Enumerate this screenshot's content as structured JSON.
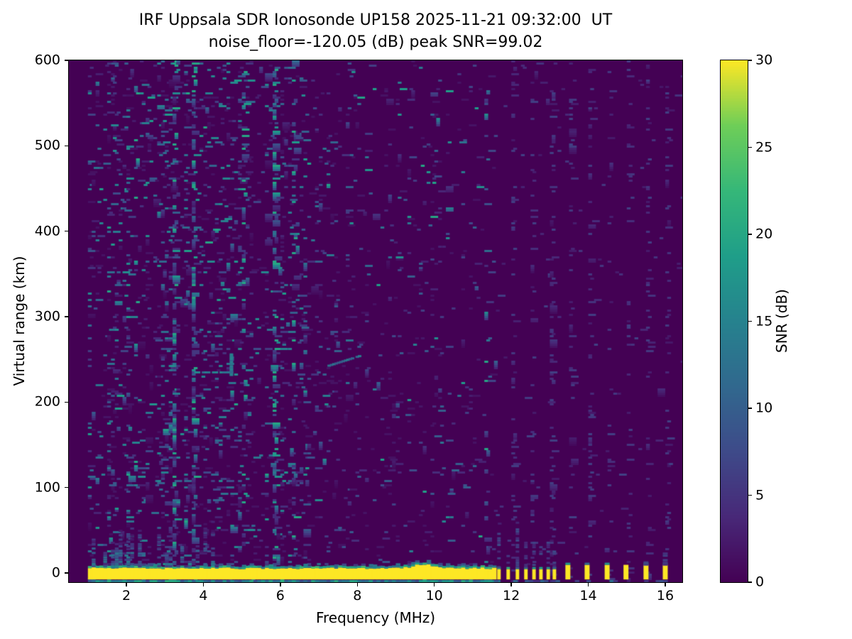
{
  "chart_data": {
    "type": "heatmap",
    "title": "IRF Uppsala SDR Ionosonde UP158 2025-11-21 09:32:00  UT",
    "subtitle": "noise_floor=-120.05 (dB) peak SNR=99.02",
    "xlabel": "Frequency (MHz)",
    "ylabel": "Virtual range (km)",
    "colorbar_label": "SNR (dB)",
    "xlim": [
      0.506,
      16.443
    ],
    "ylim": [
      -10.85,
      600
    ],
    "xticks": [
      2,
      4,
      6,
      8,
      10,
      12,
      14,
      16
    ],
    "yticks": [
      0,
      100,
      200,
      300,
      400,
      500,
      600
    ],
    "colorbar_ticks": [
      0,
      5,
      10,
      15,
      20,
      25,
      30
    ],
    "clim": [
      0,
      30
    ],
    "colormap": "viridis",
    "colormap_stops": [
      [
        0.0,
        "#440154"
      ],
      [
        0.125,
        "#482878"
      ],
      [
        0.25,
        "#3e4a89"
      ],
      [
        0.375,
        "#31688e"
      ],
      [
        0.5,
        "#26828e"
      ],
      [
        0.625,
        "#1f9e89"
      ],
      [
        0.75,
        "#35b779"
      ],
      [
        0.875,
        "#6ece58"
      ],
      [
        1.0,
        "#fde725"
      ]
    ],
    "stats": {
      "noise_floor_db": -120.05,
      "peak_snr_db": 99.02
    },
    "background_snr_db": 0,
    "no_data_below_mhz": 1.0,
    "ground_return": {
      "snr_db": 30,
      "band_freq_start_mhz": 1.0,
      "band_freq_end_mhz": 11.55,
      "band_range_km": [
        -7.6,
        5.5
      ],
      "band_bump_center_mhz": 9.65,
      "band_bump_extra_km": 5,
      "dash_freqs_mhz": [
        11.68,
        11.92,
        12.16,
        12.38,
        12.59,
        12.77,
        12.96,
        13.12
      ],
      "pulse_freqs_mhz": [
        13.47,
        13.97,
        14.49,
        14.98,
        15.5,
        16.0
      ]
    },
    "echo_traces": [
      {
        "kind": "horizontal",
        "freq_mhz": [
          3.8,
          4.72
        ],
        "range_km": [
          236,
          236
        ],
        "snr_db": 14
      },
      {
        "kind": "vertical",
        "freq_mhz": [
          4.72,
          4.72
        ],
        "range_km": [
          233,
          257
        ],
        "snr_db": 13
      },
      {
        "kind": "diagonal",
        "freq_mhz": [
          7.2,
          8.05
        ],
        "range_km": [
          243,
          255
        ],
        "snr_db": 12
      }
    ],
    "noise": {
      "seed": 20251121,
      "left_region_mhz": [
        1.0,
        6.6
      ],
      "mid_region_mhz": [
        6.6,
        11.6
      ],
      "right_region_mhz": [
        11.6,
        16.44
      ],
      "right_column_spacing_mhz": 0.5,
      "description": "dense teal speckle streak columns at low frequencies, sparse faint blue-purple dash columns on 0.5 MHz grid at high frequencies"
    }
  }
}
